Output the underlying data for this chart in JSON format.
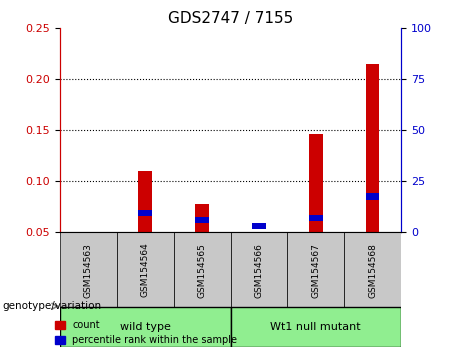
{
  "title": "GDS2747 / 7155",
  "samples": [
    "GSM154563",
    "GSM154564",
    "GSM154565",
    "GSM154566",
    "GSM154567",
    "GSM154568"
  ],
  "red_values": [
    0.0,
    0.11,
    0.078,
    0.0,
    0.146,
    0.215
  ],
  "blue_values": [
    0.0,
    0.069,
    0.062,
    0.056,
    0.064,
    0.085
  ],
  "ylim_left": [
    0.05,
    0.25
  ],
  "yticks_left": [
    0.05,
    0.1,
    0.15,
    0.2,
    0.25
  ],
  "yticks_right": [
    0,
    25,
    50,
    75,
    100
  ],
  "ylim_right": [
    0,
    100
  ],
  "groups": [
    {
      "label": "wild type",
      "color": "#90EE90",
      "samples": [
        "GSM154563",
        "GSM154564",
        "GSM154565"
      ]
    },
    {
      "label": "Wt1 null mutant",
      "color": "#90EE90",
      "samples": [
        "GSM154566",
        "GSM154567",
        "GSM154568"
      ]
    }
  ],
  "group_label": "genotype/variation",
  "red_color": "#CC0000",
  "blue_color": "#0000CC",
  "bar_width": 0.4,
  "grid_color": "#000000",
  "left_axis_color": "#CC0000",
  "right_axis_color": "#0000CC",
  "legend_count": "count",
  "legend_percentile": "percentile rank within the sample",
  "xlabel_area_color": "#C0C0C0",
  "group_box_color": "#90EE90"
}
